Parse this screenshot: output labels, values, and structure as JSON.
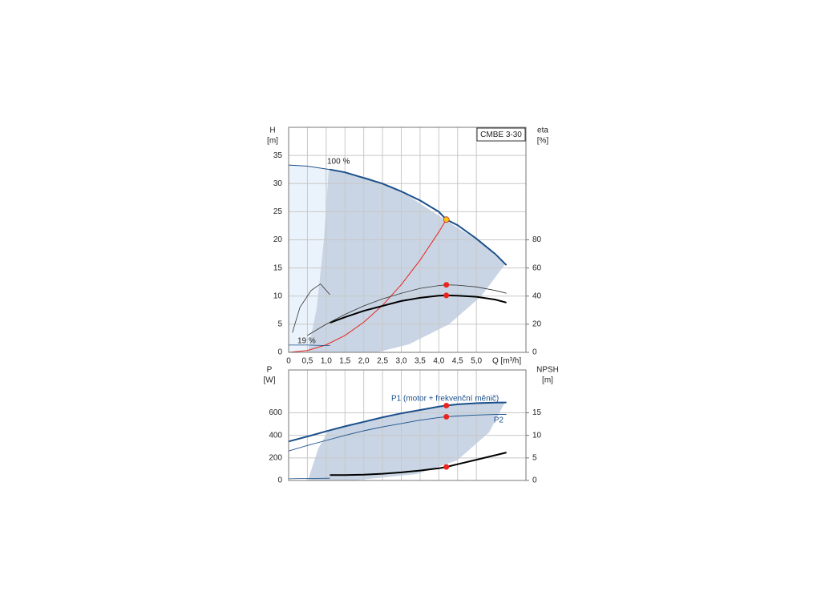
{
  "chart_data": [
    {
      "type": "line",
      "title": "CMBE 3-30",
      "xlabel": "Q [m³/h]",
      "ylabel": "H",
      "yunit": "[m]",
      "y2label": "eta",
      "y2unit": "[%]",
      "xlim": [
        0,
        6.32
      ],
      "ylim": [
        0,
        40
      ],
      "y2lim": [
        0,
        160
      ],
      "xticks": [
        0,
        {
          "value": 0.5,
          "label": "0,5"
        },
        {
          "value": 1,
          "label": "1,0"
        },
        {
          "value": 1.5,
          "label": "1,5"
        },
        {
          "value": 2,
          "label": "2,0"
        },
        {
          "value": 2.5,
          "label": "2,5"
        },
        {
          "value": 3,
          "label": "3,0"
        },
        {
          "value": 3.5,
          "label": "3,5"
        },
        {
          "value": 4,
          "label": "4,0"
        },
        {
          "value": 4.5,
          "label": "4,5"
        },
        {
          "value": 5,
          "label": "5,0"
        }
      ],
      "yticks": [
        0,
        5,
        10,
        15,
        20,
        25,
        30,
        35
      ],
      "y2ticks": [
        0,
        20,
        40,
        60,
        80
      ],
      "grid": true,
      "annotations": [
        "100 %",
        "19 %"
      ],
      "series": [
        {
          "color": "#1a4f8a",
          "width": 2,
          "x": [
            1.1,
            1.5,
            2,
            2.5,
            3,
            3.5,
            4,
            4.2,
            4.5,
            5,
            5.5,
            5.8
          ],
          "values": [
            32.5,
            32,
            31,
            30,
            28.6,
            27,
            25,
            23.6,
            22.6,
            20.2,
            17.5,
            15.5
          ]
        },
        {
          "color": "#1a4f8a",
          "width": 1,
          "x": [
            0,
            0.5,
            1.1
          ],
          "values": [
            33.3,
            33.1,
            32.5
          ]
        },
        {
          "color": "#e8251f",
          "width": 1,
          "x": [
            0,
            0.5,
            1,
            1.5,
            2,
            2.5,
            3,
            3.5,
            4,
            4.2
          ],
          "values": [
            0,
            0.33,
            1.34,
            3.01,
            5.35,
            8.36,
            12.04,
            16.39,
            21.4,
            23.6
          ]
        },
        {
          "color": "#000000",
          "width": 2,
          "axis": "y2",
          "x": [
            1.1,
            1.5,
            2,
            2.5,
            3,
            3.5,
            4,
            4.2,
            4.5,
            5,
            5.5,
            5.8
          ],
          "values": [
            21,
            25,
            29.5,
            33,
            36.5,
            38.8,
            40.3,
            40.5,
            40.3,
            39.5,
            37.5,
            35.4
          ]
        },
        {
          "color": "#333333",
          "width": 0.8,
          "axis": "y2",
          "x": [
            0.5,
            1,
            1.5,
            2,
            2.5,
            3,
            3.5,
            4,
            4.2,
            4.5,
            5,
            5.5,
            5.8
          ],
          "values": [
            12,
            20,
            27,
            33,
            38,
            42,
            45.5,
            47.5,
            48,
            47.8,
            46.5,
            44,
            42
          ]
        },
        {
          "color": "#333333",
          "width": 0.8,
          "axis": "y2",
          "x": [
            0.1,
            0.3,
            0.6,
            0.85,
            1.1
          ],
          "values": [
            14,
            32,
            44,
            48.6,
            41
          ]
        },
        {
          "color": "#1a4f8a",
          "width": 0.8,
          "x": [
            0,
            0.5,
            1.1
          ],
          "values": [
            1.3,
            1.3,
            1.2
          ]
        }
      ],
      "points": [
        {
          "x": 4.2,
          "y": 23.6,
          "color": "#f5c518"
        },
        {
          "x": 4.2,
          "y": 48,
          "axis": "y2",
          "color": "#e8251f"
        },
        {
          "x": 4.2,
          "y": 40.5,
          "axis": "y2",
          "color": "#e8251f"
        }
      ]
    },
    {
      "type": "line",
      "ylabel": "P",
      "yunit": "[W]",
      "y2label": "NPSH",
      "y2unit": "[m]",
      "ylim": [
        0,
        980
      ],
      "y2lim": [
        0,
        24.5
      ],
      "yticks": [
        0,
        200,
        400,
        600
      ],
      "y2ticks": [
        0,
        5,
        10,
        15
      ],
      "grid": true,
      "series": [
        {
          "name": "P1 (motor + frekvenční měnič)",
          "color": "#1a4f8a",
          "width": 2,
          "x": [
            0,
            0.5,
            1.1,
            1.5,
            2,
            2.5,
            3,
            3.5,
            4,
            4.2,
            4.5,
            5,
            5.5,
            5.8
          ],
          "values": [
            346,
            390,
            445,
            480,
            520,
            560,
            595,
            625,
            655,
            664,
            675,
            685,
            690,
            692
          ]
        },
        {
          "name": "P2",
          "color": "#1a4f8a",
          "width": 0.9,
          "x": [
            0,
            0.5,
            1,
            1.5,
            2,
            2.5,
            3,
            3.5,
            4,
            4.2,
            4.5,
            5,
            5.5,
            5.8
          ],
          "values": [
            261,
            310,
            355,
            400,
            440,
            475,
            505,
            535,
            558,
            565,
            572,
            580,
            585,
            586
          ]
        },
        {
          "color": "#000000",
          "width": 2,
          "axis": "y2",
          "x": [
            1.1,
            1.5,
            2,
            2.5,
            3,
            3.5,
            4,
            4.2,
            4.5,
            5,
            5.5,
            5.8
          ],
          "values": [
            1.2,
            1.2,
            1.3,
            1.5,
            1.8,
            2.2,
            2.7,
            3.0,
            3.6,
            4.6,
            5.6,
            6.2
          ]
        },
        {
          "color": "#1a4f8a",
          "width": 0.8,
          "x": [
            0,
            0.5,
            1.1
          ],
          "values": [
            15,
            18,
            20
          ]
        }
      ],
      "points": [
        {
          "x": 4.2,
          "y": 664,
          "color": "#e8251f"
        },
        {
          "x": 4.2,
          "y": 565,
          "color": "#e8251f"
        },
        {
          "x": 4.2,
          "y": 3.0,
          "axis": "y2",
          "color": "#e8251f"
        }
      ]
    }
  ]
}
